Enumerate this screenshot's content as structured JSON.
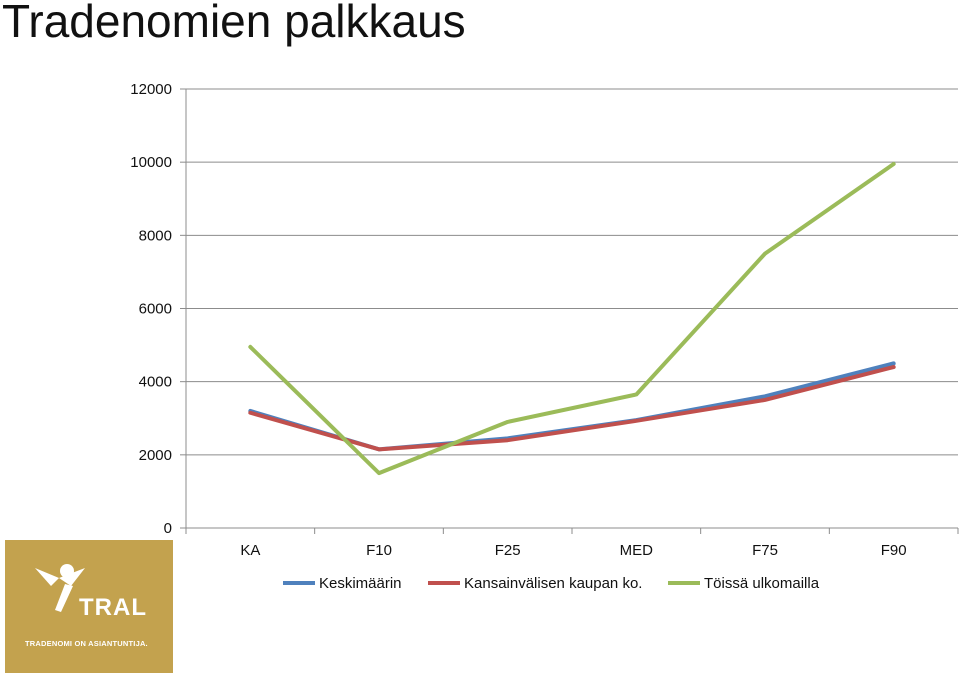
{
  "page": {
    "title": "Tradenomien palkkaus"
  },
  "chart_data": {
    "type": "line",
    "title": "",
    "xlabel": "",
    "ylabel": "",
    "categories": [
      "KA",
      "F10",
      "F25",
      "MED",
      "F75",
      "F90"
    ],
    "ylim": [
      0,
      12000
    ],
    "yticks": [
      0,
      2000,
      4000,
      6000,
      8000,
      10000,
      12000
    ],
    "grid": true,
    "legend_position": "bottom",
    "series": [
      {
        "name": "Keskimäärin",
        "color": "#4f81bd",
        "values": [
          3200,
          2150,
          2450,
          2950,
          3600,
          4500
        ]
      },
      {
        "name": "Kansainvälisen kaupan ko.",
        "color": "#c0504d",
        "values": [
          3150,
          2150,
          2400,
          2930,
          3500,
          4400
        ]
      },
      {
        "name": "Töissä ulkomailla",
        "color": "#9bbb59",
        "values": [
          4950,
          1500,
          2900,
          3650,
          7500,
          9950
        ]
      }
    ]
  },
  "logo": {
    "name": "TRAL",
    "slogan": "TRADENOMI ON ASIANTUNTIJA.",
    "color": "#c3a24e",
    "icon": "tral-figure-icon"
  }
}
